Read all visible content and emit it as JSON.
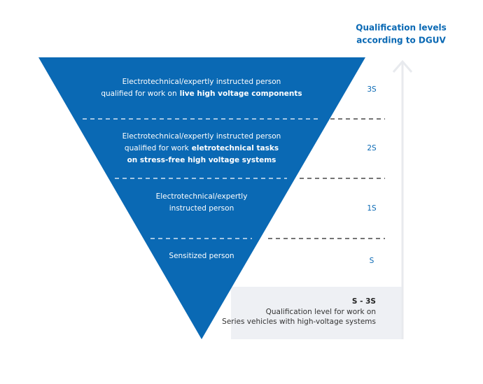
{
  "header": {
    "title_lines": [
      "Qualification levels",
      "according to DGUV"
    ]
  },
  "levels": [
    {
      "code": "3S",
      "lines": [
        [
          {
            "text": "Electrotechnical/expertly instructed person"
          }
        ],
        [
          {
            "text": "qualified for work on"
          },
          {
            "text": "live high voltage components",
            "bold": true
          }
        ]
      ]
    },
    {
      "code": "2S",
      "lines": [
        [
          {
            "text": "Electrotechnical/expertly instructed person"
          }
        ],
        [
          {
            "text": "qualified for work"
          },
          {
            "text": "eletrotechnical tasks",
            "bold": true
          }
        ],
        [
          {
            "text": "on stress-free high voltage systems",
            "bold": true
          }
        ]
      ]
    },
    {
      "code": "1S",
      "lines": [
        [
          {
            "text": "Electrotechnical/expertly"
          }
        ],
        [
          {
            "text": "instructed person"
          }
        ]
      ]
    },
    {
      "code": "S",
      "lines": [
        [
          {
            "text": "Sensitized person"
          }
        ]
      ]
    }
  ],
  "note": {
    "title": "S - 3S",
    "lines": [
      "Qualification level for work on",
      "Series vehicles with high-voltage systems"
    ]
  }
}
